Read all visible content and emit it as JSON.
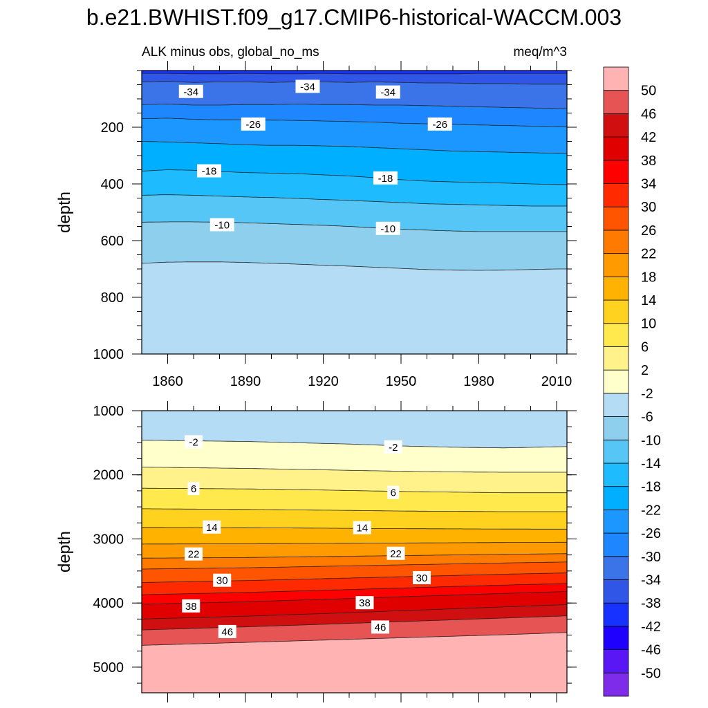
{
  "figure": {
    "title": "b.e21.BWHIST.f09_g17.CMIP6-historical-WACCM.003",
    "subtitle_left": "ALK minus obs, global_no_ms",
    "subtitle_right": "meq/m^3"
  },
  "colorbar": {
    "levels": [
      -50,
      -46,
      -42,
      -38,
      -34,
      -30,
      -26,
      -22,
      -18,
      -14,
      -10,
      -6,
      -2,
      2,
      6,
      10,
      14,
      18,
      22,
      26,
      30,
      34,
      38,
      42,
      46,
      50
    ],
    "tick_labels": [
      "-50",
      "-46",
      "-42",
      "-38",
      "-34",
      "-30",
      "-26",
      "-22",
      "-18",
      "-14",
      "-10",
      "-6",
      "-2",
      "2",
      "6",
      "10",
      "14",
      "18",
      "22",
      "26",
      "30",
      "34",
      "38",
      "42",
      "46",
      "50"
    ],
    "colors_bottom_to_top": [
      "#7f2bea",
      "#5a17f5",
      "#1f00ff",
      "#1732ff",
      "#2f56e6",
      "#3b73e8",
      "#1e86ff",
      "#1b97ff",
      "#00afff",
      "#1ebcff",
      "#55c6f5",
      "#8ecfee",
      "#b4ddf5",
      "#ffffcc",
      "#fff28a",
      "#ffe94d",
      "#ffd21f",
      "#ffb300",
      "#ff9b00",
      "#ff7a00",
      "#ff5500",
      "#ff2a00",
      "#ff0000",
      "#e00000",
      "#d01010",
      "#e65454",
      "#ffb3b3"
    ]
  },
  "chart_data": [
    {
      "type": "contour",
      "panel": "upper",
      "x": [
        1850,
        1860,
        1870,
        1880,
        1890,
        1900,
        1910,
        1920,
        1930,
        1940,
        1950,
        1960,
        1970,
        1980,
        1990,
        2000,
        2010,
        2014
      ],
      "xlim": [
        1850,
        2014
      ],
      "x_ticks": [
        1860,
        1890,
        1920,
        1950,
        1980,
        2010
      ],
      "ylabel": "depth",
      "ylim": [
        1000,
        0
      ],
      "y_ticks": [
        200,
        400,
        600,
        800,
        1000
      ],
      "contours": [
        {
          "level": -38,
          "depth": [
            10,
            10,
            12,
            12,
            10,
            12,
            12,
            10,
            12,
            12,
            12,
            12,
            12,
            10,
            10,
            10,
            10,
            10
          ]
        },
        {
          "level": -34,
          "depth": [
            40,
            38,
            42,
            40,
            40,
            42,
            40,
            40,
            42,
            40,
            42,
            44,
            44,
            46,
            46,
            48,
            48,
            48
          ]
        },
        {
          "level": -30,
          "depth": [
            120,
            118,
            122,
            122,
            120,
            120,
            118,
            120,
            120,
            122,
            122,
            124,
            126,
            128,
            130,
            132,
            134,
            135
          ]
        },
        {
          "level": -26,
          "depth": [
            170,
            168,
            172,
            174,
            174,
            175,
            176,
            178,
            180,
            182,
            186,
            188,
            190,
            192,
            194,
            196,
            198,
            198
          ]
        },
        {
          "level": -22,
          "depth": [
            250,
            252,
            255,
            258,
            262,
            264,
            264,
            266,
            268,
            272,
            276,
            280,
            284,
            286,
            288,
            290,
            292,
            292
          ]
        },
        {
          "level": -18,
          "depth": [
            355,
            350,
            352,
            356,
            360,
            362,
            364,
            368,
            372,
            378,
            385,
            390,
            393,
            395,
            397,
            400,
            402,
            402
          ]
        },
        {
          "level": -14,
          "depth": [
            440,
            438,
            440,
            443,
            446,
            448,
            451,
            455,
            458,
            462,
            466,
            470,
            472,
            474,
            476,
            478,
            478,
            478
          ]
        },
        {
          "level": -10,
          "depth": [
            535,
            534,
            534,
            535,
            537,
            540,
            543,
            546,
            550,
            555,
            560,
            563,
            566,
            568,
            568,
            568,
            568,
            568
          ]
        },
        {
          "level": -6,
          "depth": [
            680,
            676,
            675,
            675,
            677,
            680,
            683,
            687,
            690,
            694,
            698,
            702,
            704,
            705,
            704,
            702,
            700,
            700
          ]
        }
      ],
      "line_labels": [
        {
          "text": "-34",
          "x": 1869,
          "depth": 75
        },
        {
          "text": "-34",
          "x": 1914,
          "depth": 57
        },
        {
          "text": "-34",
          "x": 1945,
          "depth": 77
        },
        {
          "text": "-26",
          "x": 1893,
          "depth": 190
        },
        {
          "text": "-26",
          "x": 1965,
          "depth": 190
        },
        {
          "text": "-18",
          "x": 1876,
          "depth": 355
        },
        {
          "text": "-18",
          "x": 1944,
          "depth": 380
        },
        {
          "text": "-10",
          "x": 1881,
          "depth": 545
        },
        {
          "text": "-10",
          "x": 1945,
          "depth": 558
        }
      ]
    },
    {
      "type": "contour",
      "panel": "lower",
      "x": [
        1850,
        1870,
        1890,
        1910,
        1930,
        1950,
        1970,
        1990,
        2014
      ],
      "xlim": [
        1850,
        2014
      ],
      "x_ticks": [
        1860,
        1890,
        1920,
        1950,
        1980,
        2010
      ],
      "ylabel": "depth",
      "ylim": [
        5400,
        1000
      ],
      "y_ticks": [
        1000,
        2000,
        3000,
        4000,
        5000
      ],
      "contours": [
        {
          "level": -2,
          "depth": [
            1460,
            1470,
            1480,
            1500,
            1520,
            1550,
            1570,
            1580,
            1560
          ]
        },
        {
          "level": 2,
          "depth": [
            1880,
            1890,
            1900,
            1915,
            1930,
            1945,
            1955,
            1960,
            1960
          ]
        },
        {
          "level": 6,
          "depth": [
            2210,
            2215,
            2220,
            2230,
            2245,
            2260,
            2270,
            2280,
            2280
          ]
        },
        {
          "level": 10,
          "depth": [
            2530,
            2535,
            2540,
            2548,
            2555,
            2565,
            2570,
            2575,
            2575
          ]
        },
        {
          "level": 14,
          "depth": [
            2820,
            2822,
            2825,
            2830,
            2835,
            2840,
            2843,
            2846,
            2848
          ]
        },
        {
          "level": 18,
          "depth": [
            3080,
            3078,
            3075,
            3072,
            3068,
            3064,
            3060,
            3056,
            3052
          ]
        },
        {
          "level": 22,
          "depth": [
            3300,
            3295,
            3290,
            3280,
            3270,
            3260,
            3250,
            3240,
            3230
          ]
        },
        {
          "level": 26,
          "depth": [
            3470,
            3460,
            3450,
            3435,
            3420,
            3405,
            3390,
            3375,
            3360
          ]
        },
        {
          "level": 30,
          "depth": [
            3680,
            3665,
            3650,
            3630,
            3610,
            3590,
            3570,
            3550,
            3530
          ]
        },
        {
          "level": 34,
          "depth": [
            3870,
            3852,
            3835,
            3812,
            3790,
            3766,
            3742,
            3720,
            3695
          ]
        },
        {
          "level": 38,
          "depth": [
            4020,
            4000,
            3980,
            3955,
            3930,
            3903,
            3876,
            3850,
            3820
          ]
        },
        {
          "level": 42,
          "depth": [
            4250,
            4228,
            4205,
            4178,
            4150,
            4120,
            4090,
            4060,
            4025
          ]
        },
        {
          "level": 46,
          "depth": [
            4420,
            4396,
            4372,
            4345,
            4318,
            4290,
            4262,
            4234,
            4200
          ]
        },
        {
          "level": 50,
          "depth": [
            4660,
            4637,
            4614,
            4590,
            4566,
            4542,
            4518,
            4494,
            4460
          ]
        }
      ],
      "line_labels": [
        {
          "text": "-2",
          "x": 1870,
          "depth": 1490
        },
        {
          "text": "-2",
          "x": 1947,
          "depth": 1570
        },
        {
          "text": "6",
          "x": 1870,
          "depth": 2220
        },
        {
          "text": "6",
          "x": 1947,
          "depth": 2280
        },
        {
          "text": "14",
          "x": 1877,
          "depth": 2820
        },
        {
          "text": "14",
          "x": 1935,
          "depth": 2830
        },
        {
          "text": "22",
          "x": 1870,
          "depth": 3240
        },
        {
          "text": "22",
          "x": 1948,
          "depth": 3230
        },
        {
          "text": "30",
          "x": 1881,
          "depth": 3650
        },
        {
          "text": "30",
          "x": 1958,
          "depth": 3610
        },
        {
          "text": "38",
          "x": 1869,
          "depth": 4050
        },
        {
          "text": "38",
          "x": 1936,
          "depth": 4000
        },
        {
          "text": "46",
          "x": 1883,
          "depth": 4450
        },
        {
          "text": "46",
          "x": 1942,
          "depth": 4380
        }
      ]
    }
  ]
}
